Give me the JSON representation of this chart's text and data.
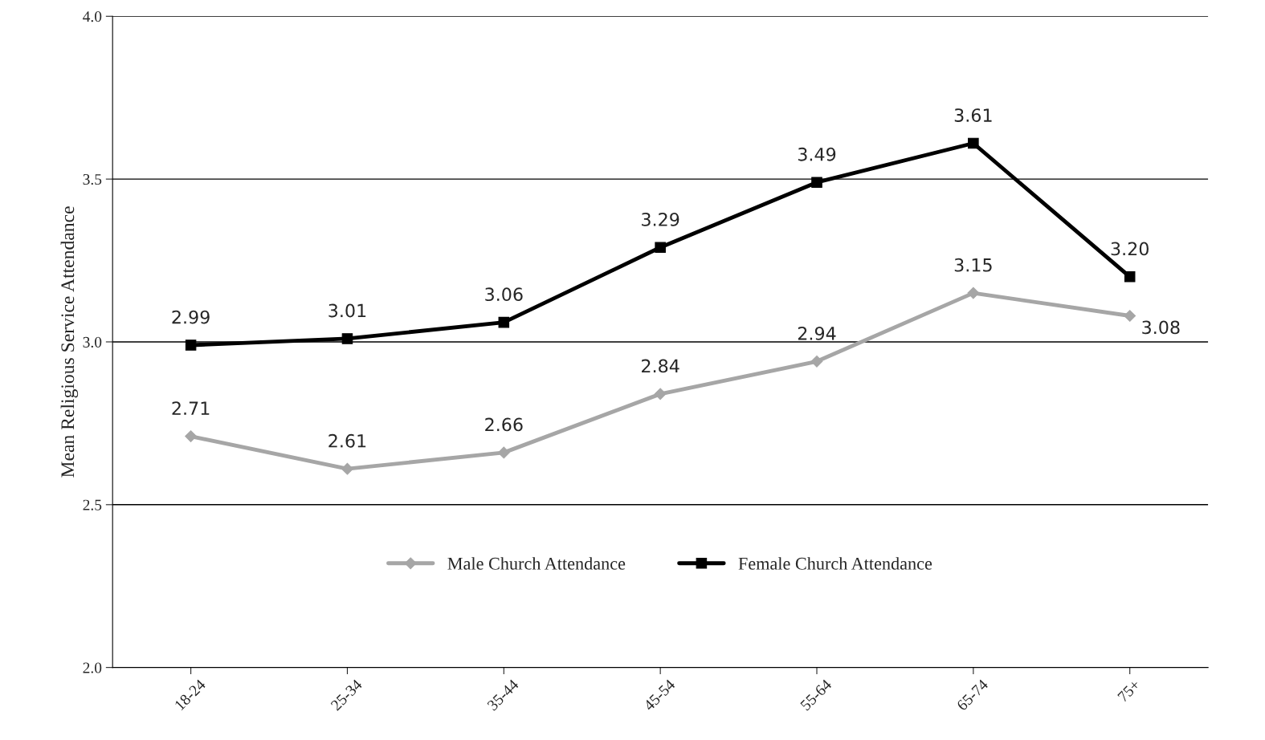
{
  "chart_data": {
    "type": "line",
    "ylabel": "Mean Religious Service Attendance",
    "categories": [
      "18-24",
      "25-34",
      "35-44",
      "45-54",
      "55-64",
      "65-74",
      "75+"
    ],
    "series": [
      {
        "name": "Male Church Attendance",
        "color": "#a6a6a6",
        "marker": "diamond",
        "values": [
          2.71,
          2.61,
          2.66,
          2.84,
          2.94,
          3.15,
          3.08
        ],
        "value_labels": [
          "2.71",
          "2.61",
          "2.66",
          "2.84",
          "2.94",
          "3.15",
          "3.08"
        ]
      },
      {
        "name": "Female Church Attendance",
        "color": "#000000",
        "marker": "square",
        "values": [
          2.99,
          3.01,
          3.06,
          3.29,
          3.49,
          3.61,
          3.2
        ],
        "value_labels": [
          "2.99",
          "3.01",
          "3.06",
          "3.29",
          "3.49",
          "3.61",
          "3.20"
        ]
      }
    ],
    "ylim": [
      2.0,
      4.0
    ],
    "yticks": [
      {
        "value": 2,
        "label": "2.0"
      },
      {
        "value": 2.5,
        "label": "2.5"
      },
      {
        "value": 3,
        "label": "3.0"
      },
      {
        "value": 3.5,
        "label": "3.5"
      },
      {
        "value": 4,
        "label": "4.0"
      }
    ],
    "grid": "y",
    "legend": "bottom"
  }
}
